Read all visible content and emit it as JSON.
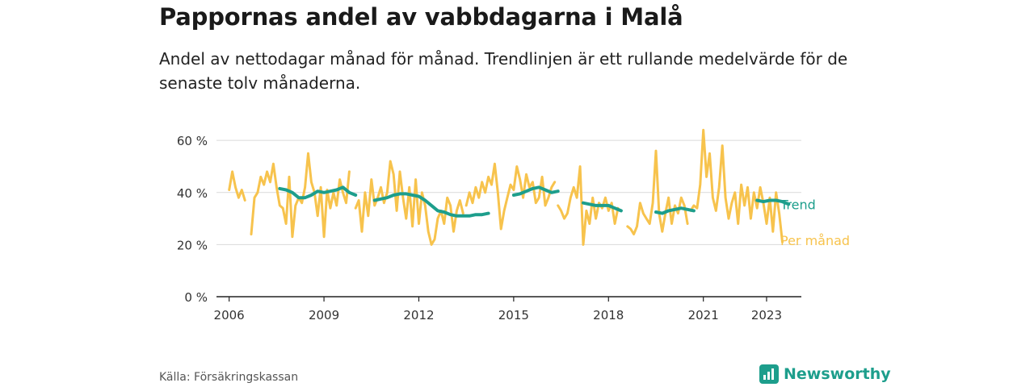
{
  "header": {
    "title": "Pappornas andel av vabbdagarna i Malå",
    "subtitle": "Andel av nettodagar månad för månad. Trendlinjen är ett rullande medelvärde för de senaste tolv månaderna."
  },
  "footer": {
    "source": "Källa: Försäkringskassan",
    "brand": "Newsworthy"
  },
  "colors": {
    "monthly": "#f7c34d",
    "trend": "#1d9e8c",
    "grid": "#d9d9d9",
    "axis": "#222222"
  },
  "chart_data": {
    "type": "line",
    "title": "Pappornas andel av vabbdagarna i Malå",
    "xlabel": "",
    "ylabel": "",
    "x_ticks": [
      "2006",
      "2009",
      "2012",
      "2015",
      "2018",
      "2021",
      "2023"
    ],
    "x_tick_values": [
      2006,
      2009,
      2012,
      2015,
      2018,
      2021,
      2023
    ],
    "y_ticks": [
      "0 %",
      "20 %",
      "40 %",
      "60 %"
    ],
    "y_tick_values": [
      0,
      20,
      40,
      60
    ],
    "xlim": [
      2005.6,
      2024.1
    ],
    "ylim": [
      0,
      65
    ],
    "grid": true,
    "series": [
      {
        "name": "Per månad",
        "segments": [
          [
            [
              2006.0,
              41
            ],
            [
              2006.1,
              48
            ],
            [
              2006.2,
              42
            ],
            [
              2006.3,
              38
            ],
            [
              2006.4,
              41
            ],
            [
              2006.5,
              37
            ],
            [
              2006.6,
              null
            ],
            [
              2006.7,
              24
            ],
            [
              2006.8,
              38
            ],
            [
              2006.9,
              40
            ],
            [
              2007.0,
              46
            ],
            [
              2007.1,
              43
            ],
            [
              2007.2,
              48
            ],
            [
              2007.3,
              44
            ],
            [
              2007.4,
              51
            ],
            [
              2007.5,
              42
            ],
            [
              2007.6,
              35
            ],
            [
              2007.7,
              34
            ],
            [
              2007.8,
              28
            ],
            [
              2007.9,
              46
            ],
            [
              2008.0,
              23
            ],
            [
              2008.1,
              35
            ],
            [
              2008.2,
              38
            ],
            [
              2008.3,
              36
            ],
            [
              2008.4,
              42
            ],
            [
              2008.5,
              55
            ],
            [
              2008.6,
              44
            ],
            [
              2008.7,
              40
            ],
            [
              2008.8,
              31
            ],
            [
              2008.9,
              42
            ],
            [
              2009.0,
              23
            ],
            [
              2009.1,
              41
            ],
            [
              2009.2,
              34
            ],
            [
              2009.3,
              40
            ],
            [
              2009.4,
              35
            ],
            [
              2009.5,
              45
            ],
            [
              2009.6,
              40
            ],
            [
              2009.7,
              36
            ],
            [
              2009.8,
              48
            ]
          ],
          [
            [
              2010.0,
              34
            ],
            [
              2010.1,
              37
            ],
            [
              2010.2,
              25
            ],
            [
              2010.3,
              40
            ],
            [
              2010.4,
              31
            ],
            [
              2010.5,
              45
            ],
            [
              2010.6,
              35
            ],
            [
              2010.7,
              38
            ],
            [
              2010.8,
              42
            ],
            [
              2010.9,
              36
            ],
            [
              2011.0,
              40
            ],
            [
              2011.1,
              52
            ],
            [
              2011.2,
              47
            ],
            [
              2011.3,
              33
            ],
            [
              2011.4,
              48
            ],
            [
              2011.5,
              38
            ],
            [
              2011.6,
              30
            ],
            [
              2011.7,
              42
            ],
            [
              2011.8,
              27
            ],
            [
              2011.9,
              45
            ],
            [
              2012.0,
              28
            ],
            [
              2012.1,
              40
            ],
            [
              2012.2,
              35
            ],
            [
              2012.3,
              25
            ],
            [
              2012.4,
              20
            ],
            [
              2012.5,
              22
            ],
            [
              2012.6,
              30
            ],
            [
              2012.7,
              33
            ],
            [
              2012.8,
              28
            ],
            [
              2012.9,
              38
            ],
            [
              2013.0,
              35
            ],
            [
              2013.1,
              25
            ],
            [
              2013.2,
              33
            ],
            [
              2013.3,
              37
            ],
            [
              2013.4,
              32
            ]
          ],
          [
            [
              2013.5,
              35
            ],
            [
              2013.6,
              40
            ],
            [
              2013.7,
              36
            ],
            [
              2013.8,
              42
            ],
            [
              2013.9,
              38
            ],
            [
              2014.0,
              44
            ],
            [
              2014.1,
              40
            ],
            [
              2014.2,
              46
            ],
            [
              2014.3,
              43
            ],
            [
              2014.4,
              51
            ],
            [
              2014.5,
              40
            ],
            [
              2014.6,
              26
            ],
            [
              2014.7,
              33
            ],
            [
              2014.8,
              38
            ],
            [
              2014.9,
              43
            ],
            [
              2015.0,
              41
            ],
            [
              2015.1,
              50
            ],
            [
              2015.2,
              45
            ],
            [
              2015.3,
              38
            ],
            [
              2015.4,
              47
            ],
            [
              2015.5,
              42
            ],
            [
              2015.6,
              44
            ],
            [
              2015.7,
              36
            ],
            [
              2015.8,
              38
            ],
            [
              2015.9,
              46
            ],
            [
              2016.0,
              35
            ],
            [
              2016.1,
              38
            ],
            [
              2016.2,
              42
            ],
            [
              2016.3,
              44
            ]
          ],
          [
            [
              2016.4,
              35
            ],
            [
              2016.5,
              33
            ],
            [
              2016.6,
              30
            ],
            [
              2016.7,
              32
            ],
            [
              2016.8,
              38
            ],
            [
              2016.9,
              42
            ],
            [
              2017.0,
              38
            ],
            [
              2017.1,
              50
            ],
            [
              2017.2,
              20
            ],
            [
              2017.3,
              33
            ],
            [
              2017.4,
              28
            ],
            [
              2017.5,
              38
            ],
            [
              2017.6,
              30
            ],
            [
              2017.7,
              36
            ],
            [
              2017.8,
              34
            ],
            [
              2017.9,
              38
            ],
            [
              2018.0,
              33
            ],
            [
              2018.1,
              36
            ],
            [
              2018.2,
              28
            ],
            [
              2018.3,
              34
            ]
          ],
          [
            [
              2018.6,
              27
            ],
            [
              2018.7,
              26
            ],
            [
              2018.8,
              24
            ],
            [
              2018.9,
              27
            ],
            [
              2019.0,
              36
            ],
            [
              2019.1,
              32
            ],
            [
              2019.2,
              30
            ],
            [
              2019.3,
              28
            ],
            [
              2019.4,
              36
            ],
            [
              2019.5,
              56
            ],
            [
              2019.6,
              32
            ],
            [
              2019.7,
              25
            ],
            [
              2019.8,
              32
            ],
            [
              2019.9,
              38
            ],
            [
              2020.0,
              28
            ],
            [
              2020.1,
              35
            ],
            [
              2020.2,
              32
            ],
            [
              2020.3,
              38
            ],
            [
              2020.4,
              35
            ],
            [
              2020.5,
              28
            ]
          ],
          [
            [
              2020.6,
              33
            ],
            [
              2020.7,
              35
            ],
            [
              2020.8,
              34
            ],
            [
              2020.9,
              43
            ],
            [
              2021.0,
              64
            ],
            [
              2021.1,
              46
            ],
            [
              2021.2,
              55
            ],
            [
              2021.3,
              38
            ],
            [
              2021.4,
              33
            ],
            [
              2021.5,
              42
            ],
            [
              2021.6,
              58
            ],
            [
              2021.7,
              38
            ],
            [
              2021.8,
              30
            ],
            [
              2021.9,
              36
            ],
            [
              2022.0,
              40
            ],
            [
              2022.1,
              28
            ],
            [
              2022.2,
              43
            ],
            [
              2022.3,
              35
            ],
            [
              2022.4,
              42
            ],
            [
              2022.5,
              30
            ],
            [
              2022.6,
              40
            ],
            [
              2022.7,
              34
            ],
            [
              2022.8,
              42
            ],
            [
              2022.9,
              36
            ],
            [
              2023.0,
              28
            ],
            [
              2023.1,
              38
            ],
            [
              2023.2,
              25
            ],
            [
              2023.3,
              40
            ],
            [
              2023.4,
              32
            ],
            [
              2023.5,
              21
            ]
          ]
        ]
      },
      {
        "name": "Trend",
        "segments": [
          [
            [
              2007.6,
              41.5
            ],
            [
              2007.8,
              41
            ],
            [
              2008.0,
              40
            ],
            [
              2008.2,
              38
            ],
            [
              2008.4,
              38
            ],
            [
              2008.6,
              39
            ],
            [
              2008.8,
              40.5
            ],
            [
              2009.0,
              40
            ],
            [
              2009.2,
              40.5
            ],
            [
              2009.4,
              41
            ],
            [
              2009.6,
              42
            ],
            [
              2009.8,
              40
            ],
            [
              2010.0,
              39
            ]
          ],
          [
            [
              2010.6,
              37
            ],
            [
              2010.8,
              37.5
            ],
            [
              2011.0,
              38
            ],
            [
              2011.2,
              39
            ],
            [
              2011.4,
              39.5
            ],
            [
              2011.6,
              39.5
            ],
            [
              2011.8,
              39
            ],
            [
              2012.0,
              38.5
            ],
            [
              2012.2,
              37
            ],
            [
              2012.4,
              35
            ],
            [
              2012.6,
              33
            ],
            [
              2012.8,
              32.5
            ],
            [
              2013.0,
              31.5
            ],
            [
              2013.2,
              31
            ],
            [
              2013.4,
              31
            ],
            [
              2013.6,
              31
            ],
            [
              2013.8,
              31.5
            ],
            [
              2014.0,
              31.5
            ],
            [
              2014.2,
              32
            ]
          ],
          [
            [
              2015.0,
              39
            ],
            [
              2015.2,
              39.5
            ],
            [
              2015.4,
              40.5
            ],
            [
              2015.6,
              41.5
            ],
            [
              2015.8,
              42
            ],
            [
              2016.0,
              41
            ],
            [
              2016.2,
              40
            ],
            [
              2016.4,
              40.5
            ]
          ],
          [
            [
              2017.2,
              36
            ],
            [
              2017.4,
              35.5
            ],
            [
              2017.6,
              35
            ],
            [
              2017.8,
              35
            ],
            [
              2018.0,
              35
            ],
            [
              2018.2,
              34
            ],
            [
              2018.4,
              33
            ]
          ],
          [
            [
              2019.5,
              32.5
            ],
            [
              2019.7,
              32
            ],
            [
              2019.9,
              33
            ],
            [
              2020.1,
              33.5
            ],
            [
              2020.3,
              34
            ],
            [
              2020.5,
              33.5
            ],
            [
              2020.7,
              33
            ]
          ],
          [
            [
              2022.7,
              37
            ],
            [
              2022.9,
              36.5
            ],
            [
              2023.1,
              37
            ],
            [
              2023.3,
              37
            ],
            [
              2023.5,
              36.5
            ],
            [
              2023.7,
              35.5
            ]
          ]
        ]
      }
    ],
    "legend_labels": [
      "Trend",
      "Per månad"
    ]
  }
}
